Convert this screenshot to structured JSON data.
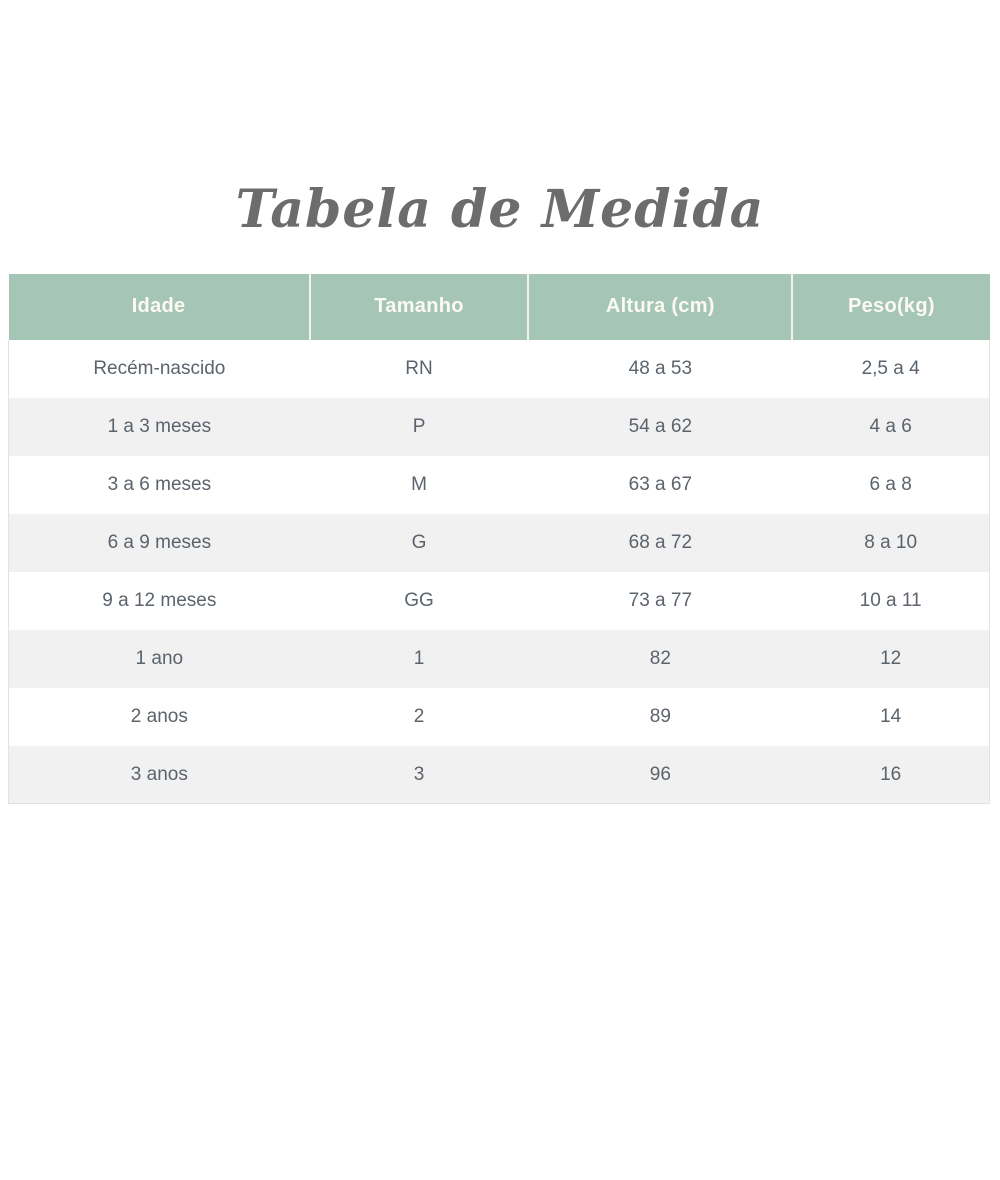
{
  "title": "Tabela de Medida",
  "chart_data": {
    "type": "table",
    "title": "Tabela de Medida",
    "columns": [
      "Idade",
      "Tamanho",
      "Altura (cm)",
      "Peso(kg)"
    ],
    "rows": [
      [
        "Recém-nascido",
        "RN",
        "48 a 53",
        "2,5 a 4"
      ],
      [
        "1 a 3 meses",
        "P",
        "54 a 62",
        "4 a 6"
      ],
      [
        "3 a 6 meses",
        "M",
        "63 a 67",
        "6 a 8"
      ],
      [
        "6 a 9 meses",
        "G",
        "68 a 72",
        "8 a 10"
      ],
      [
        "9 a 12 meses",
        "GG",
        "73 a 77",
        "10 a 11"
      ],
      [
        "1 ano",
        "1",
        "82",
        "12"
      ],
      [
        "2 anos",
        "2",
        "89",
        "14"
      ],
      [
        "3 anos",
        "3",
        "96",
        "16"
      ]
    ],
    "layout": {
      "header_row": true,
      "zebra_striping": true,
      "column_width_pct": [
        30.7,
        22.3,
        26.9,
        20.1
      ]
    }
  },
  "colors": {
    "header_bg": "#a5c6b7",
    "header_text": "#fcfaf0",
    "row_alt_bg": "#f1f1f1",
    "row_text": "#5b636c",
    "title_text": "#6b6c6e",
    "border": "#e2e2e2"
  }
}
